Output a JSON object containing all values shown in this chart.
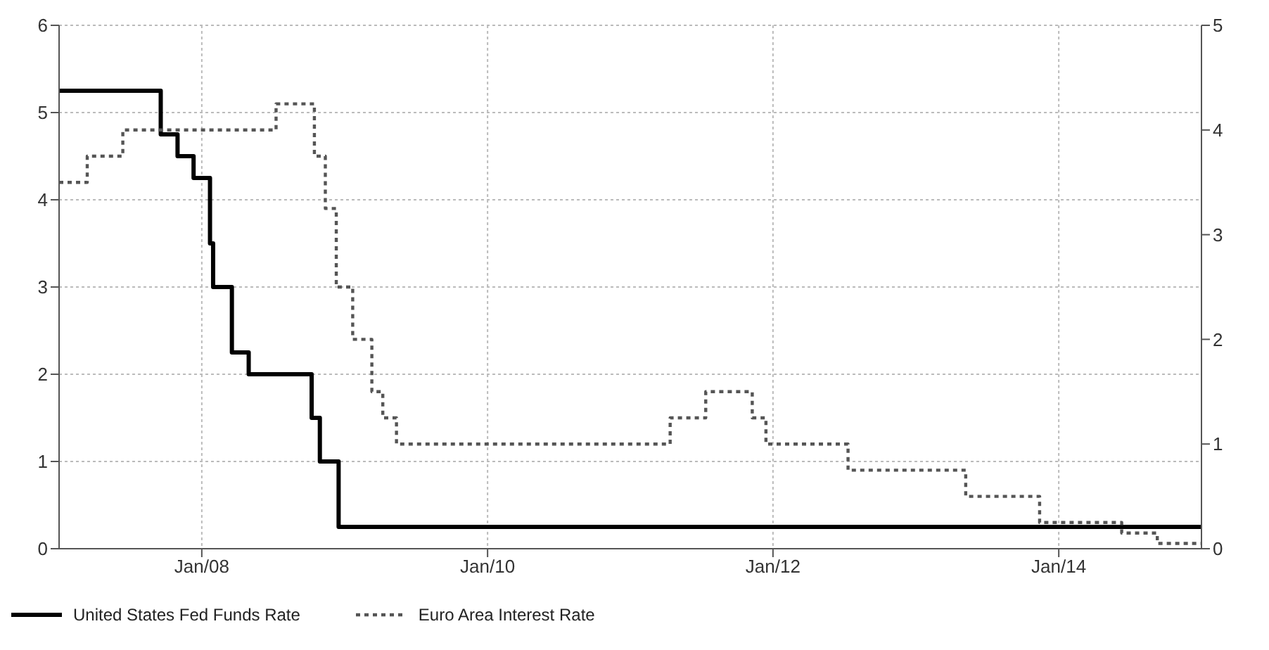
{
  "chart_data": {
    "type": "step",
    "xlim": [
      "2007-01-01",
      "2015-01-01"
    ],
    "xticks": [
      {
        "value": "2008-01-01",
        "label": "Jan/08"
      },
      {
        "value": "2010-01-01",
        "label": "Jan/10"
      },
      {
        "value": "2012-01-01",
        "label": "Jan/12"
      },
      {
        "value": "2014-01-01",
        "label": "Jan/14"
      }
    ],
    "ylim": [
      0,
      6
    ],
    "yticks": [
      0,
      1,
      2,
      3,
      4,
      5,
      6
    ],
    "y2lim": [
      0,
      5
    ],
    "y2ticks": [
      0,
      1,
      2,
      3,
      4,
      5
    ],
    "grid": true,
    "legend": "bottom left",
    "series": [
      {
        "name": "United States Fed Funds Rate",
        "color": "#000000",
        "line_style": "solid",
        "x": [
          "2007-01-01",
          "2007-09-18",
          "2007-10-31",
          "2007-12-11",
          "2008-01-22",
          "2008-01-30",
          "2008-03-18",
          "2008-04-30",
          "2008-10-08",
          "2008-10-29",
          "2008-12-16",
          "2015-01-01"
        ],
        "values": [
          5.25,
          4.75,
          4.5,
          4.25,
          3.5,
          3.0,
          2.25,
          2.0,
          1.5,
          1.0,
          0.25,
          0.25
        ]
      },
      {
        "name": "Euro Area Interest Rate",
        "color": "#555555",
        "line_style": "dotted",
        "axis": "y2",
        "x": [
          "2007-01-01",
          "2007-03-14",
          "2007-06-13",
          "2008-07-09",
          "2008-10-15",
          "2008-11-12",
          "2008-12-10",
          "2009-01-21",
          "2009-03-11",
          "2009-04-08",
          "2009-05-13",
          "2011-04-13",
          "2011-07-13",
          "2011-11-09",
          "2011-12-14",
          "2012-07-11",
          "2013-05-08",
          "2013-11-13",
          "2014-06-11",
          "2014-09-10",
          "2015-01-01"
        ],
        "values": [
          3.5,
          3.75,
          4.0,
          4.25,
          3.75,
          3.25,
          2.5,
          2.0,
          1.5,
          1.25,
          1.0,
          1.25,
          1.5,
          1.25,
          1.0,
          0.75,
          0.5,
          0.25,
          0.15,
          0.05,
          0.05
        ]
      }
    ]
  }
}
